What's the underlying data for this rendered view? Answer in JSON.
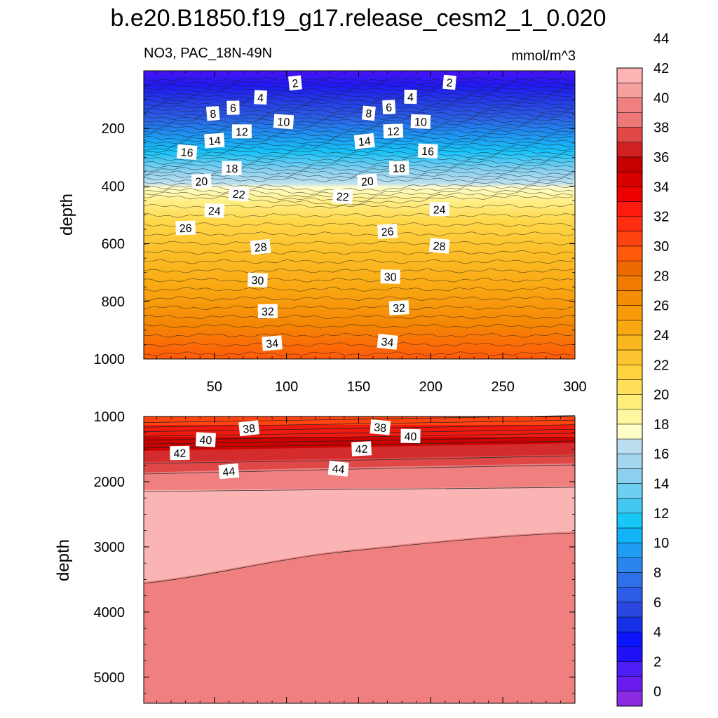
{
  "chart_data": {
    "type": "contour",
    "title": "b.e20.B1850.f19_g17.release_cesm2_1_0.020",
    "variable_label": "NO3, PAC_18N-49N",
    "units_label": "mmol/m^3",
    "colorbar": {
      "labels": [
        "0",
        "2",
        "4",
        "6",
        "8",
        "10",
        "12",
        "14",
        "16",
        "18",
        "20",
        "22",
        "24",
        "26",
        "28",
        "30",
        "32",
        "34",
        "36",
        "38",
        "40",
        "42",
        "44"
      ],
      "levels": [
        0,
        2,
        4,
        6,
        8,
        10,
        12,
        14,
        16,
        18,
        20,
        22,
        24,
        26,
        28,
        30,
        32,
        34,
        36,
        38,
        40,
        42,
        44
      ],
      "colors": [
        "#8a2be2",
        "#6a1cf0",
        "#4d1ef5",
        "#1f12f7",
        "#0a14ff",
        "#1630e8",
        "#2a47df",
        "#2d5ce6",
        "#2f6fe8",
        "#2c85ef",
        "#1f9df4",
        "#11b5f7",
        "#16c7f8",
        "#43c8f2",
        "#6dd0f1",
        "#8ccfee",
        "#a3d6ef",
        "#bcdff0",
        "#fffec8",
        "#fff6a0",
        "#ffed7a",
        "#ffe05a",
        "#fed23e",
        "#fcc530",
        "#fbb720",
        "#f9a812",
        "#f79b08",
        "#f48c04",
        "#f17b02",
        "#ec6a01",
        "#ff5a0a",
        "#ff4410",
        "#ff2e10",
        "#ff1a10",
        "#ee0000",
        "#d90000",
        "#c50000",
        "#d02020",
        "#e04848",
        "#ee7878",
        "#f08080",
        "#f7a0a0",
        "#ffb4b4"
      ]
    },
    "panels": [
      {
        "name": "upper",
        "ylabel": "depth",
        "ylim": [
          0,
          1000
        ],
        "xlim": [
          1,
          300
        ],
        "x_ticks": [
          "50",
          "100",
          "150",
          "200",
          "250",
          "300"
        ],
        "y_ticks": [
          "200",
          "400",
          "600",
          "800",
          "1000"
        ],
        "contour_labels": [
          {
            "text": "2",
            "x": 106,
            "y": 42
          },
          {
            "text": "2",
            "x": 213,
            "y": 40
          },
          {
            "text": "4",
            "x": 82,
            "y": 92
          },
          {
            "text": "4",
            "x": 186,
            "y": 90
          },
          {
            "text": "6",
            "x": 63,
            "y": 128
          },
          {
            "text": "6",
            "x": 171,
            "y": 126
          },
          {
            "text": "8",
            "x": 49,
            "y": 148
          },
          {
            "text": "8",
            "x": 157,
            "y": 147
          },
          {
            "text": "10",
            "x": 98,
            "y": 176
          },
          {
            "text": "10",
            "x": 193,
            "y": 176
          },
          {
            "text": "12",
            "x": 69,
            "y": 210
          },
          {
            "text": "12",
            "x": 174,
            "y": 209
          },
          {
            "text": "14",
            "x": 50,
            "y": 242
          },
          {
            "text": "14",
            "x": 154,
            "y": 244
          },
          {
            "text": "16",
            "x": 31,
            "y": 282
          },
          {
            "text": "16",
            "x": 198,
            "y": 278
          },
          {
            "text": "18",
            "x": 62,
            "y": 338
          },
          {
            "text": "18",
            "x": 178,
            "y": 337
          },
          {
            "text": "20",
            "x": 41,
            "y": 383
          },
          {
            "text": "20",
            "x": 156,
            "y": 383
          },
          {
            "text": "22",
            "x": 67,
            "y": 427
          },
          {
            "text": "22",
            "x": 139,
            "y": 436
          },
          {
            "text": "24",
            "x": 50,
            "y": 485
          },
          {
            "text": "24",
            "x": 206,
            "y": 480
          },
          {
            "text": "26",
            "x": 30,
            "y": 545
          },
          {
            "text": "26",
            "x": 170,
            "y": 557
          },
          {
            "text": "28",
            "x": 82,
            "y": 611
          },
          {
            "text": "28",
            "x": 206,
            "y": 607
          },
          {
            "text": "30",
            "x": 80,
            "y": 726
          },
          {
            "text": "30",
            "x": 172,
            "y": 714
          },
          {
            "text": "32",
            "x": 87,
            "y": 834
          },
          {
            "text": "32",
            "x": 178,
            "y": 822
          },
          {
            "text": "34",
            "x": 90,
            "y": 945
          },
          {
            "text": "34",
            "x": 170,
            "y": 940
          }
        ]
      },
      {
        "name": "lower",
        "ylabel": "depth",
        "ylim": [
          1000,
          5400
        ],
        "xlim": [
          1,
          300
        ],
        "y_ticks": [
          "1000",
          "2000",
          "3000",
          "4000",
          "5000"
        ],
        "contour_labels": [
          {
            "text": "38",
            "x": 74,
            "y": 1180
          },
          {
            "text": "38",
            "x": 165,
            "y": 1165
          },
          {
            "text": "40",
            "x": 44,
            "y": 1355
          },
          {
            "text": "40",
            "x": 186,
            "y": 1300
          },
          {
            "text": "42",
            "x": 26,
            "y": 1560
          },
          {
            "text": "42",
            "x": 152,
            "y": 1495
          },
          {
            "text": "44",
            "x": 60,
            "y": 1840
          },
          {
            "text": "44",
            "x": 136,
            "y": 1800
          }
        ]
      }
    ]
  }
}
